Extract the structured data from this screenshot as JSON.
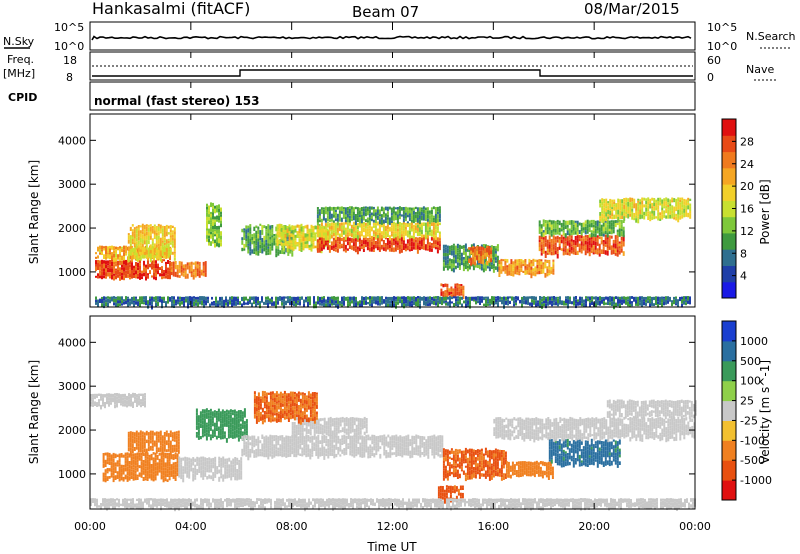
{
  "header": {
    "station": "Hankasalmi (fitACF)",
    "beam": "Beam 07",
    "date": "08/Mar/2015"
  },
  "noise_panel": {
    "left_label": "N.Sky",
    "right_label": "N.Search",
    "tick_top": "10^5",
    "tick_bottom": "10^0"
  },
  "freq_panel": {
    "left_label_1": "Freq.",
    "left_label_2": "[MHz]",
    "right_label": "Nave",
    "freq_ticks": [
      "18",
      "8"
    ],
    "nave_ticks": [
      "60",
      "0"
    ]
  },
  "cpid_panel": {
    "label": "CPID",
    "mode": "normal (fast stereo) 153"
  },
  "chart_data": [
    {
      "type": "heatmap",
      "panel": "power",
      "xlabel": "Time UT",
      "ylabel": "Slant Range [km]",
      "x_ticks": [
        "00:00",
        "04:00",
        "08:00",
        "12:00",
        "16:00",
        "20:00",
        "00:00"
      ],
      "xlim": [
        0,
        24
      ],
      "y_ticks": [
        1000,
        2000,
        3000,
        4000
      ],
      "ylim": [
        200,
        4600
      ],
      "colorbar_label": "Power [dB]",
      "colorbar_ticks": [
        "4",
        "8",
        "12",
        "16",
        "20",
        "24",
        "28"
      ],
      "colorbar_range": [
        0,
        30
      ],
      "colors": [
        "#1a1ae6",
        "#1f3fa8",
        "#2f6f8f",
        "#3f9a3f",
        "#7ec83a",
        "#c8e030",
        "#f2d02a",
        "#f5a623",
        "#f07a1e",
        "#e84a17",
        "#e01010"
      ],
      "regions": [
        {
          "t": [
            0.2,
            3.2
          ],
          "r": [
            850,
            1300
          ],
          "level": 27
        },
        {
          "t": [
            0.2,
            3.2
          ],
          "r": [
            1300,
            1600
          ],
          "level": 20
        },
        {
          "t": [
            1.5,
            3.4
          ],
          "r": [
            1300,
            2100
          ],
          "level": 18
        },
        {
          "t": [
            3.2,
            4.6
          ],
          "r": [
            900,
            1250
          ],
          "level": 24
        },
        {
          "t": [
            4.6,
            5.2
          ],
          "r": [
            1600,
            2600
          ],
          "level": 12
        },
        {
          "t": [
            6.0,
            8.0
          ],
          "r": [
            1400,
            2100
          ],
          "level": 10
        },
        {
          "t": [
            7.4,
            9.5
          ],
          "r": [
            1500,
            2100
          ],
          "level": 16
        },
        {
          "t": [
            9.0,
            13.9
          ],
          "r": [
            1500,
            1800
          ],
          "level": 27
        },
        {
          "t": [
            9.0,
            13.9
          ],
          "r": [
            1800,
            2150
          ],
          "level": 17
        },
        {
          "t": [
            9.0,
            13.9
          ],
          "r": [
            2150,
            2500
          ],
          "level": 9
        },
        {
          "t": [
            13.9,
            14.8
          ],
          "r": [
            450,
            750
          ],
          "level": 26
        },
        {
          "t": [
            14.0,
            16.2
          ],
          "r": [
            1050,
            1650
          ],
          "level": 9
        },
        {
          "t": [
            15.0,
            15.9
          ],
          "r": [
            1200,
            1600
          ],
          "level": 24
        },
        {
          "t": [
            16.2,
            18.4
          ],
          "r": [
            950,
            1300
          ],
          "level": 22
        },
        {
          "t": [
            17.8,
            21.2
          ],
          "r": [
            1400,
            1850
          ],
          "level": 26
        },
        {
          "t": [
            17.8,
            21.2
          ],
          "r": [
            1850,
            2200
          ],
          "level": 11
        },
        {
          "t": [
            20.2,
            23.8
          ],
          "r": [
            2200,
            2700
          ],
          "level": 16
        },
        {
          "t": [
            0.2,
            23.8
          ],
          "r": [
            250,
            450
          ],
          "level": 6
        }
      ]
    },
    {
      "type": "heatmap",
      "panel": "velocity",
      "xlabel": "Time UT",
      "ylabel": "Slant Range [km]",
      "x_ticks": [
        "00:00",
        "04:00",
        "08:00",
        "12:00",
        "16:00",
        "20:00",
        "00:00"
      ],
      "xlim": [
        0,
        24
      ],
      "y_ticks": [
        1000,
        2000,
        3000,
        4000
      ],
      "ylim": [
        200,
        4600
      ],
      "colorbar_label": "Velocity [m s^-1]",
      "colorbar_ticks": [
        "1000",
        "500",
        "100",
        "25",
        "-25",
        "-100",
        "-500",
        "-1000"
      ],
      "colors": [
        "#1a3fd0",
        "#2a6fa0",
        "#3a9a5a",
        "#8fd04a",
        "#c8c8c8",
        "#f2c030",
        "#f08020",
        "#e85010",
        "#e01010"
      ],
      "regions": [
        {
          "t": [
            0.0,
            2.2
          ],
          "r": [
            2550,
            2850
          ],
          "level": 0
        },
        {
          "t": [
            0.5,
            3.5
          ],
          "r": [
            850,
            1500
          ],
          "level": -200
        },
        {
          "t": [
            1.5,
            3.5
          ],
          "r": [
            1500,
            2000
          ],
          "level": -120
        },
        {
          "t": [
            3.5,
            6.0
          ],
          "r": [
            900,
            1400
          ],
          "level": 0
        },
        {
          "t": [
            4.2,
            6.2
          ],
          "r": [
            1800,
            2500
          ],
          "level": 150
        },
        {
          "t": [
            6.0,
            14.0
          ],
          "r": [
            1400,
            1900
          ],
          "level": 0
        },
        {
          "t": [
            8.0,
            11.0
          ],
          "r": [
            1900,
            2300
          ],
          "level": 0
        },
        {
          "t": [
            6.5,
            9.0
          ],
          "r": [
            2200,
            2900
          ],
          "level": -300
        },
        {
          "t": [
            13.8,
            14.8
          ],
          "r": [
            400,
            750
          ],
          "level": -400
        },
        {
          "t": [
            14.0,
            16.5
          ],
          "r": [
            900,
            1600
          ],
          "level": -350
        },
        {
          "t": [
            16.5,
            18.4
          ],
          "r": [
            950,
            1300
          ],
          "level": -150
        },
        {
          "t": [
            18.2,
            21.0
          ],
          "r": [
            1200,
            1800
          ],
          "level": 400
        },
        {
          "t": [
            16.0,
            24.0
          ],
          "r": [
            1800,
            2300
          ],
          "level": 0
        },
        {
          "t": [
            20.5,
            24.0
          ],
          "r": [
            2300,
            2700
          ],
          "level": 0
        },
        {
          "t": [
            0.0,
            24.0
          ],
          "r": [
            250,
            450
          ],
          "level": 0
        }
      ]
    }
  ]
}
